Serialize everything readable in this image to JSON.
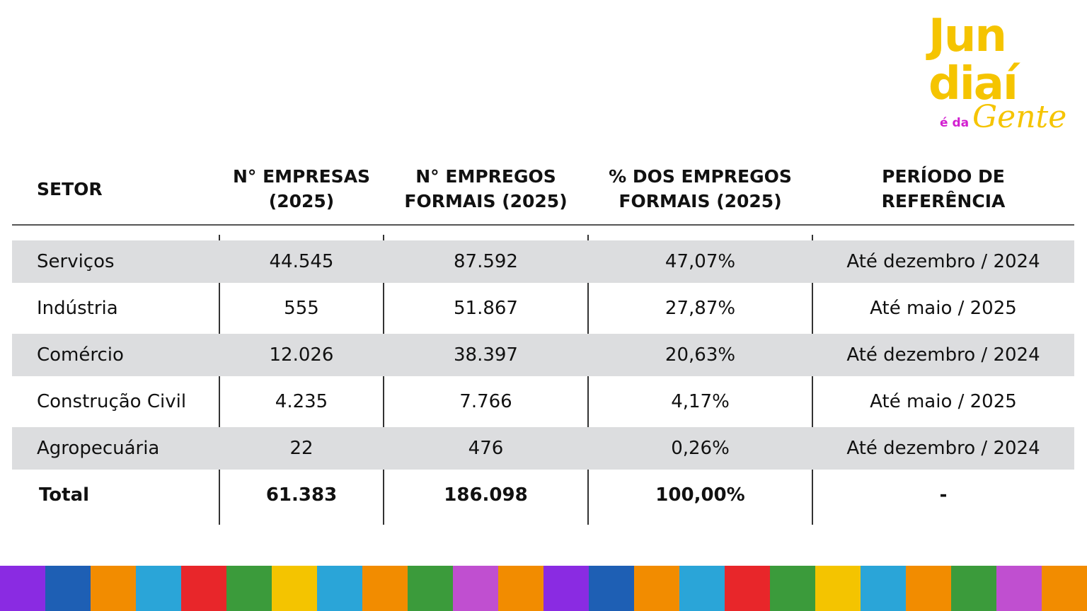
{
  "logo": {
    "line1": "Jun",
    "line2": "diaí",
    "small": "é da",
    "script": "Gente"
  },
  "table": {
    "headers": [
      [
        "SETOR"
      ],
      [
        "N° EMPRESAS",
        "(2025)"
      ],
      [
        "N° EMPREGOS",
        "FORMAIS (2025)"
      ],
      [
        "% DOS EMPREGOS",
        "FORMAIS (2025)"
      ],
      [
        "PERÍODO DE",
        "REFERÊNCIA"
      ]
    ],
    "rows": [
      [
        "Serviços",
        "44.545",
        "87.592",
        "47,07%",
        "Até dezembro / 2024"
      ],
      [
        "Indústria",
        "555",
        "51.867",
        "27,87%",
        "Até maio / 2025"
      ],
      [
        "Comércio",
        "12.026",
        "38.397",
        "20,63%",
        "Até dezembro / 2024"
      ],
      [
        "Construção Civil",
        "4.235",
        "7.766",
        "4,17%",
        "Até maio / 2025"
      ],
      [
        "Agropecuária",
        "22",
        "476",
        "0,26%",
        "Até dezembro / 2024"
      ]
    ],
    "total": [
      "Total",
      "61.383",
      "186.098",
      "100,00%",
      "-"
    ]
  }
}
